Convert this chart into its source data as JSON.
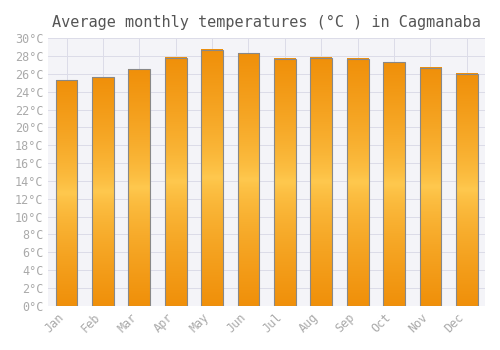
{
  "title": "Average monthly temperatures (°C ) in Cagmanaba",
  "months": [
    "Jan",
    "Feb",
    "Mar",
    "Apr",
    "May",
    "Jun",
    "Jul",
    "Aug",
    "Sep",
    "Oct",
    "Nov",
    "Dec"
  ],
  "temperatures": [
    25.3,
    25.6,
    26.5,
    27.8,
    28.7,
    28.3,
    27.7,
    27.8,
    27.7,
    27.3,
    26.7,
    26.0
  ],
  "bar_color_center": "#FFB730",
  "bar_color_edge": "#F0900A",
  "bar_color_left": "#FFCA50",
  "ylim": [
    0,
    30
  ],
  "ytick_step": 2,
  "background_color": "#ffffff",
  "plot_bg_color": "#f4f4f8",
  "grid_color": "#dcdce8",
  "title_fontsize": 11,
  "tick_fontsize": 8.5,
  "font_color": "#aaaaaa",
  "title_color": "#555555"
}
